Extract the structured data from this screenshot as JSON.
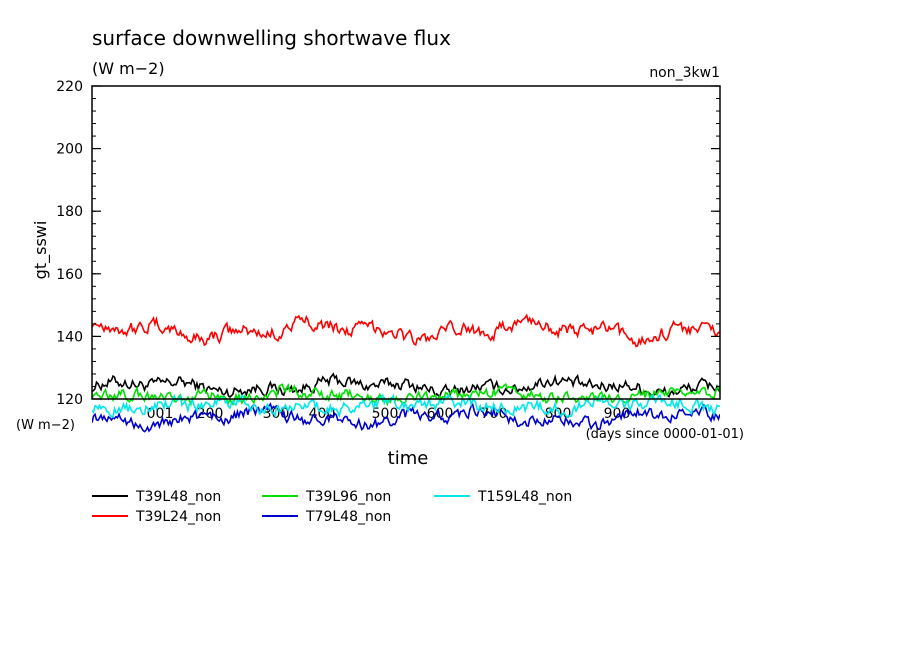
{
  "chart_data": {
    "type": "line",
    "title": "surface downwelling shortwave flux",
    "units": "(W m−2)",
    "run_label": "non_3kw1",
    "ylabel": "gt_sswi",
    "xlabel": "time",
    "x_units_note": "(days since 0000-01-01)",
    "y_axis_ref_label": "(W m−2)",
    "ylim": [
      120,
      220
    ],
    "y_ticks": [
      120,
      140,
      160,
      180,
      200,
      220
    ],
    "x_tick_labels": [
      "001",
      "200",
      "300",
      "400",
      "500",
      "600",
      "700",
      "800",
      "900"
    ],
    "grid": false,
    "legend_position": "bottom",
    "series": [
      {
        "name": "T39L48_non",
        "color": "#000000",
        "mean": 124,
        "amp": 2.0,
        "noise": 1.6
      },
      {
        "name": "T39L24_non",
        "color": "#ff0000",
        "mean": 142,
        "amp": 3.0,
        "noise": 1.8
      },
      {
        "name": "T39L96_non",
        "color": "#00e000",
        "mean": 121,
        "amp": 1.5,
        "noise": 1.5
      },
      {
        "name": "T79L48_non",
        "color": "#0000cc",
        "mean": 114,
        "amp": 2.5,
        "noise": 1.6
      },
      {
        "name": "T159L48_non",
        "color": "#00e8e8",
        "mean": 118,
        "amp": 1.5,
        "noise": 1.7
      }
    ]
  }
}
